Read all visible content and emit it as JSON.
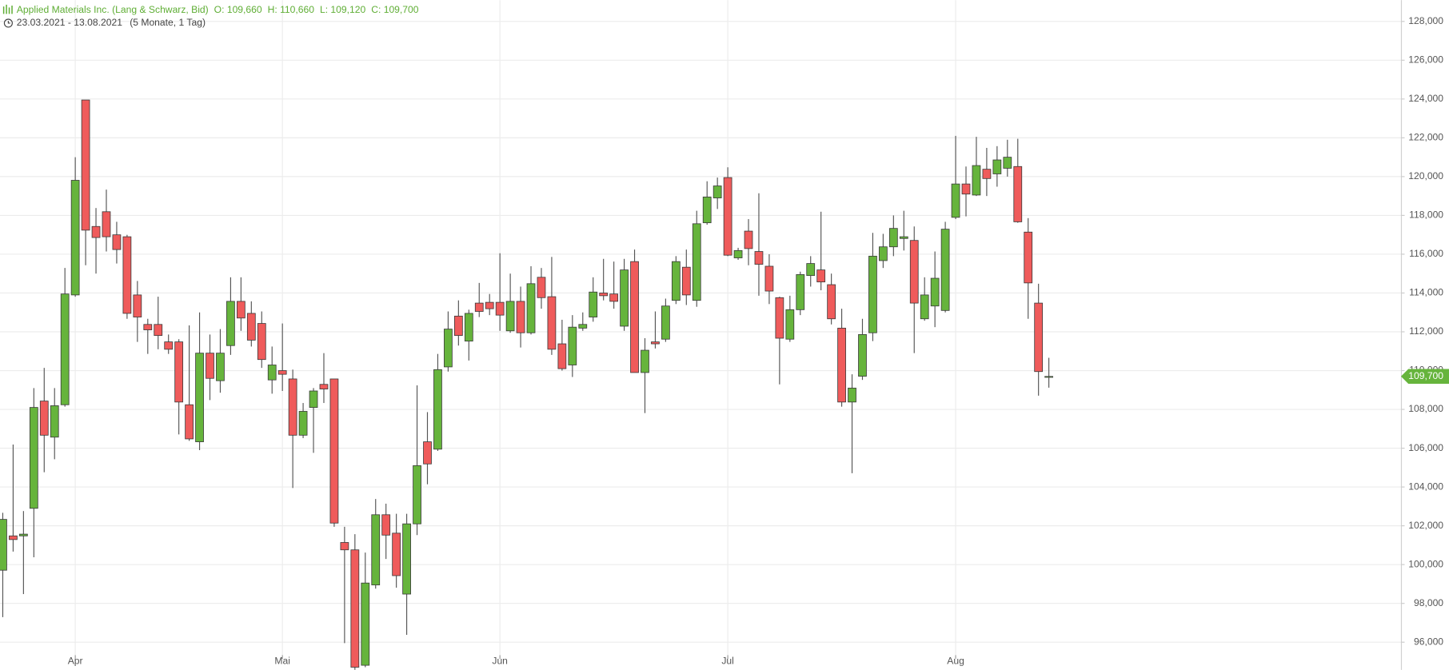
{
  "chart_data": {
    "type": "candlestick",
    "title": "Applied Materials Inc. (Lang & Schwarz, Bid)",
    "quote": [
      "O: 109,660",
      "H: 110,660",
      "L: 109,120",
      "C: 109,700"
    ],
    "date_range": "23.03.2021 - 13.08.2021",
    "period": "(5 Monate, 1 Tag)",
    "categories": [
      null,
      null,
      null,
      null,
      null,
      null,
      null,
      "Apr",
      null,
      null,
      null,
      null,
      null,
      null,
      null,
      null,
      null,
      null,
      null,
      null,
      null,
      null,
      null,
      null,
      null,
      null,
      null,
      "Mai",
      null,
      null,
      null,
      null,
      null,
      null,
      null,
      null,
      null,
      null,
      null,
      null,
      null,
      null,
      null,
      null,
      null,
      null,
      null,
      null,
      "Jun",
      null,
      null,
      null,
      null,
      null,
      null,
      null,
      null,
      null,
      null,
      null,
      null,
      null,
      null,
      null,
      null,
      null,
      null,
      null,
      null,
      null,
      "Jul",
      null,
      null,
      null,
      null,
      null,
      null,
      null,
      null,
      null,
      null,
      null,
      null,
      null,
      null,
      null,
      null,
      null,
      null,
      null,
      null,
      null,
      "Aug",
      null,
      null,
      null,
      null,
      null,
      null,
      null,
      null,
      null
    ],
    "open": [
      99.71,
      101.48,
      101.48,
      102.9,
      108.43,
      106.57,
      108.24,
      113.9,
      123.95,
      117.43,
      118.19,
      117.0,
      116.9,
      113.9,
      112.38,
      112.38,
      111.48,
      111.48,
      108.24,
      106.33,
      110.9,
      109.48,
      111.29,
      113.57,
      112.95,
      112.43,
      109.52,
      110.0,
      109.57,
      106.67,
      108.1,
      109.29,
      109.57,
      101.14,
      100.76,
      94.81,
      98.95,
      102.57,
      101.62,
      98.48,
      102.1,
      106.33,
      105.95,
      110.19,
      112.81,
      111.52,
      113.48,
      113.52,
      113.52,
      112.05,
      113.57,
      111.95,
      114.81,
      113.81,
      111.38,
      110.29,
      112.19,
      112.76,
      114.0,
      113.95,
      112.29,
      115.62,
      109.9,
      111.48,
      111.62,
      113.62,
      115.33,
      113.62,
      117.62,
      118.9,
      119.95,
      115.81,
      117.19,
      116.14,
      115.38,
      113.76,
      111.62,
      113.14,
      114.9,
      115.19,
      114.43,
      112.19,
      108.38,
      109.71,
      111.95,
      115.67,
      116.38,
      116.81,
      116.71,
      112.67,
      113.33,
      113.1,
      117.9,
      119.62,
      119.05,
      120.38,
      120.14,
      120.43,
      120.52,
      117.14,
      113.48,
      109.66
    ],
    "high": [
      102.67,
      106.19,
      102.76,
      109.1,
      110.14,
      109.1,
      115.29,
      121.0,
      123.95,
      118.38,
      119.33,
      117.67,
      117.0,
      114.62,
      112.67,
      113.81,
      111.86,
      111.62,
      112.33,
      113.0,
      111.86,
      112.14,
      114.81,
      114.81,
      113.57,
      113.05,
      111.24,
      112.43,
      110.05,
      108.33,
      109.1,
      110.9,
      109.57,
      101.95,
      101.57,
      100.62,
      103.38,
      103.14,
      102.62,
      102.62,
      109.24,
      107.86,
      110.86,
      113.05,
      113.62,
      113.14,
      114.52,
      113.95,
      116.05,
      115.0,
      114.33,
      115.38,
      115.29,
      115.86,
      112.62,
      112.86,
      113.0,
      114.81,
      115.76,
      115.62,
      115.76,
      116.24,
      111.67,
      113.05,
      113.71,
      115.9,
      116.24,
      118.24,
      119.76,
      119.95,
      120.48,
      116.33,
      117.81,
      119.14,
      116.0,
      113.81,
      113.86,
      115.1,
      115.9,
      118.19,
      115.0,
      113.19,
      109.81,
      112.67,
      117.1,
      117.05,
      118.0,
      118.24,
      117.43,
      114.81,
      116.14,
      117.67,
      122.1,
      120.52,
      122.05,
      121.48,
      121.57,
      121.9,
      121.95,
      117.86,
      114.48,
      110.66
    ],
    "low": [
      97.29,
      100.67,
      98.48,
      100.38,
      104.76,
      105.43,
      108.14,
      113.81,
      115.43,
      115.0,
      116.14,
      115.52,
      112.67,
      111.48,
      110.86,
      111.1,
      110.86,
      106.71,
      106.38,
      105.9,
      108.48,
      108.86,
      110.81,
      112.05,
      111.24,
      110.14,
      108.81,
      108.95,
      103.95,
      106.52,
      105.76,
      108.33,
      101.95,
      95.95,
      94.57,
      94.71,
      98.76,
      100.29,
      98.81,
      96.38,
      101.52,
      104.14,
      105.86,
      109.95,
      111.29,
      110.52,
      112.76,
      112.86,
      112.05,
      111.95,
      111.19,
      111.86,
      113.19,
      110.81,
      110.0,
      109.67,
      112.05,
      112.52,
      113.62,
      113.19,
      112.05,
      109.9,
      107.81,
      111.14,
      111.48,
      113.43,
      113.38,
      113.29,
      117.52,
      118.33,
      115.9,
      115.71,
      115.43,
      113.86,
      113.43,
      109.29,
      111.48,
      112.86,
      114.33,
      114.14,
      112.38,
      108.14,
      104.71,
      109.52,
      111.52,
      115.29,
      115.9,
      116.19,
      110.9,
      112.57,
      112.24,
      113.0,
      117.81,
      117.95,
      119.0,
      119.0,
      119.48,
      120.0,
      117.62,
      112.67,
      108.71,
      109.12
    ],
    "close": [
      102.33,
      101.29,
      101.57,
      108.1,
      106.67,
      108.19,
      113.95,
      119.81,
      117.24,
      116.86,
      116.9,
      116.24,
      112.95,
      112.76,
      112.1,
      111.81,
      111.1,
      108.38,
      106.48,
      110.9,
      109.6,
      110.9,
      113.57,
      112.71,
      111.57,
      110.57,
      110.29,
      109.81,
      106.67,
      107.9,
      108.95,
      109.05,
      102.14,
      100.76,
      94.71,
      99.05,
      102.57,
      101.52,
      99.43,
      102.1,
      105.1,
      105.19,
      110.05,
      112.14,
      111.81,
      112.95,
      113.05,
      113.19,
      112.86,
      113.57,
      111.95,
      114.48,
      113.76,
      111.1,
      110.1,
      112.24,
      112.38,
      114.05,
      113.86,
      113.57,
      115.19,
      109.9,
      111.05,
      111.38,
      113.33,
      115.62,
      113.9,
      117.57,
      118.95,
      119.52,
      115.95,
      116.19,
      116.29,
      115.48,
      114.1,
      111.67,
      113.14,
      114.95,
      115.52,
      114.57,
      112.67,
      108.38,
      109.1,
      111.86,
      115.9,
      116.38,
      117.33,
      116.9,
      113.48,
      113.9,
      114.76,
      117.29,
      119.62,
      119.1,
      120.57,
      119.9,
      120.86,
      121.0,
      117.67,
      114.52,
      109.95,
      109.7
    ],
    "up_color": "#66b43c",
    "down_color": "#ef5b5b",
    "ylim": [
      94.57,
      129.1
    ],
    "yticks": [
      {
        "value": 96,
        "label": "96,000"
      },
      {
        "value": 98,
        "label": "98,000"
      },
      {
        "value": 100,
        "label": "100,000"
      },
      {
        "value": 102,
        "label": "102,000"
      },
      {
        "value": 104,
        "label": "104,000"
      },
      {
        "value": 106,
        "label": "106,000"
      },
      {
        "value": 108,
        "label": "108,000"
      },
      {
        "value": 110,
        "label": "110,000"
      },
      {
        "value": 112,
        "label": "112,000"
      },
      {
        "value": 114,
        "label": "114,000"
      },
      {
        "value": 116,
        "label": "116,000"
      },
      {
        "value": 118,
        "label": "118,000"
      },
      {
        "value": 120,
        "label": "120,000"
      },
      {
        "value": 122,
        "label": "122,000"
      },
      {
        "value": 124,
        "label": "124,000"
      },
      {
        "value": 126,
        "label": "126,000"
      },
      {
        "value": 128,
        "label": "128,000"
      }
    ],
    "price_tag": {
      "value": 109.7,
      "label": "109,700"
    },
    "grid": true
  }
}
